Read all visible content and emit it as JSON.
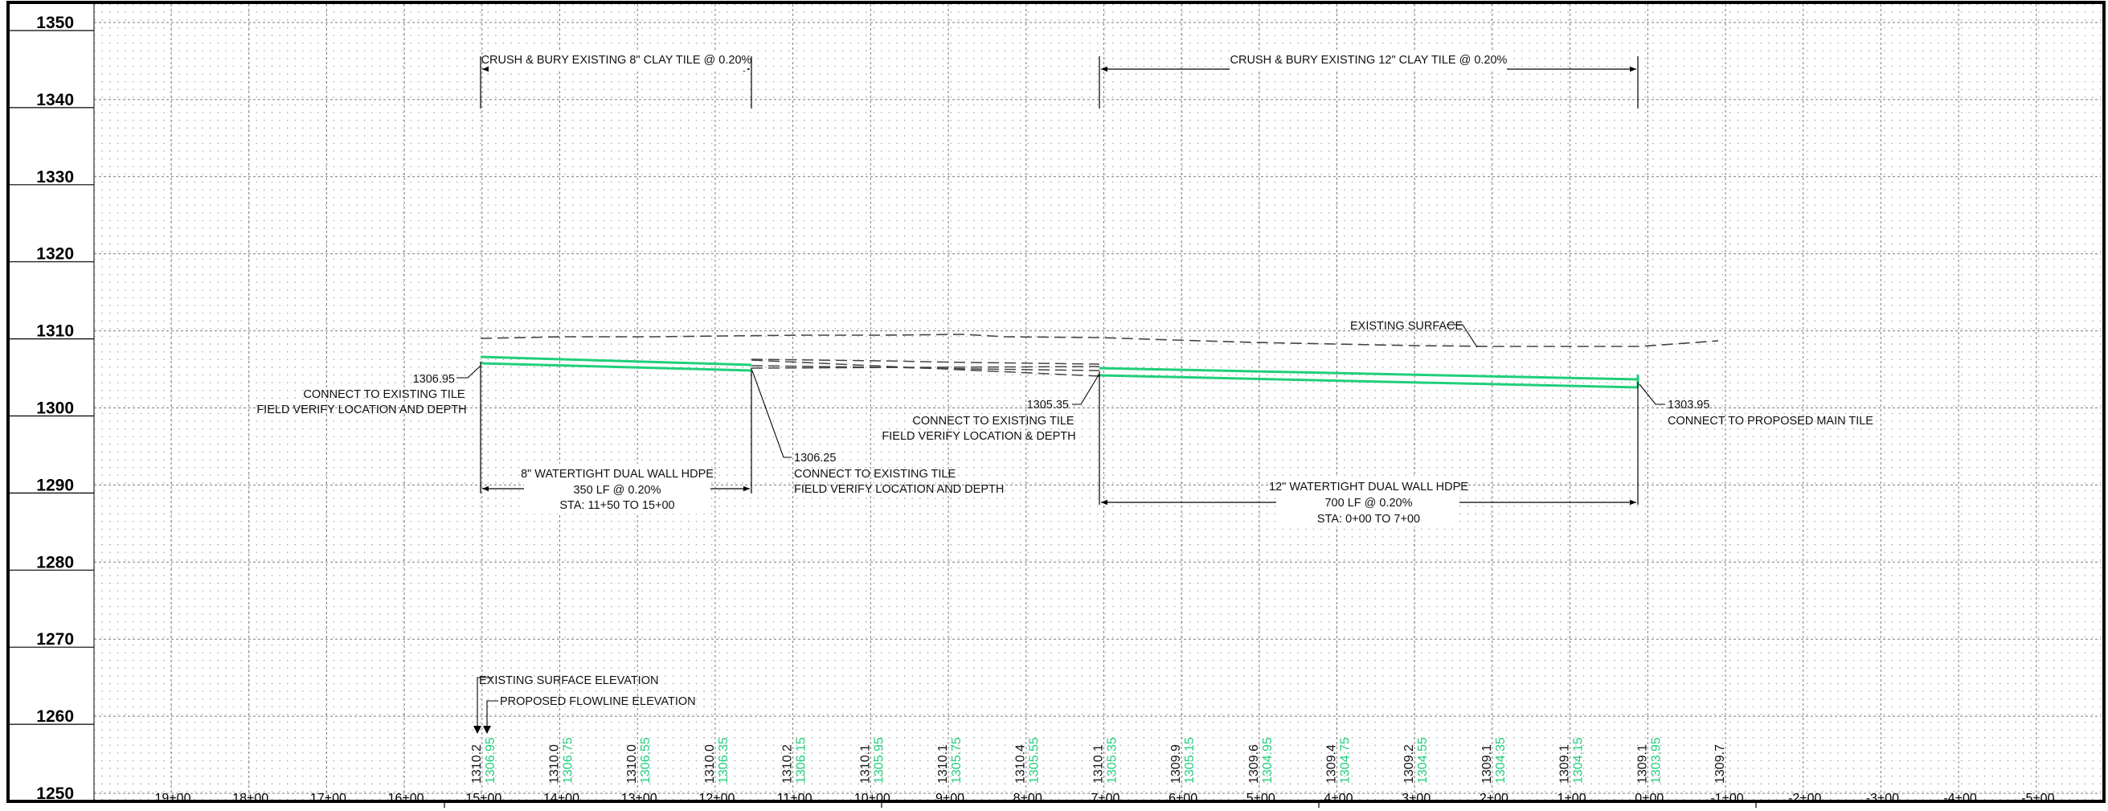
{
  "profile": {
    "elevation_labels": [
      "1350",
      "1340",
      "1330",
      "1320",
      "1310",
      "1300",
      "1290",
      "1280",
      "1270",
      "1260",
      "1250"
    ],
    "station_labels": [
      "19+00",
      "18+00",
      "17+00",
      "16+00",
      "15+00",
      "14+00",
      "13+00",
      "12+00",
      "11+00",
      "10+00",
      "9+00",
      "8+00",
      "7+00",
      "6+00",
      "5+00",
      "4+00",
      "3+00",
      "2+00",
      "1+00",
      "0+00",
      "-1+00",
      "-2+00",
      "-3+00",
      "-4+00",
      "-5+00"
    ],
    "existing_surface_elevations": [
      "1310.2",
      "1310.0",
      "1310.0",
      "1310.0",
      "1310.2",
      "1310.1",
      "1310.1",
      "1310.4",
      "1310.1",
      "1309.9",
      "1309.6",
      "1309.4",
      "1309.2",
      "1309.1",
      "1309.1",
      "1309.1",
      "1309.7"
    ],
    "proposed_flowline_elevations": [
      "1306.95",
      "1306.75",
      "1306.55",
      "1306.35",
      "1306.15",
      "1305.95",
      "1305.75",
      "1305.55",
      "1305.35",
      "1305.15",
      "1304.95",
      "1304.75",
      "1304.55",
      "1304.35",
      "1304.15",
      "1303.95"
    ],
    "colors": {
      "proposed": "#1fcf7a",
      "ink": "#000000",
      "grid": "#a8a8a8"
    },
    "annotations": {
      "crush_8in": "CRUSH & BURY EXISTING 8\" CLAY TILE @ 0.20%",
      "crush_12in": "CRUSH & BURY EXISTING 12\" CLAY TILE @ 0.20%",
      "existing_surface": "EXISTING SURFACE",
      "elev_1306_95": "1306.95",
      "connect_existing_1": "CONNECT TO EXISTING TILE",
      "field_verify_depth_1": "FIELD VERIFY LOCATION AND DEPTH",
      "elev_1306_25": "1306.25",
      "connect_existing_2": "CONNECT TO EXISTING TILE",
      "field_verify_depth_2": "FIELD VERIFY LOCATION AND DEPTH",
      "elev_1305_35": "1305.35",
      "connect_existing_3": "CONNECT TO EXISTING TILE",
      "field_verify_amp": "FIELD VERIFY LOCATION & DEPTH",
      "elev_1303_95": "1303.95",
      "connect_main": "CONNECT TO PROPOSED MAIN TILE",
      "pipe8_line1": "8\" WATERTIGHT DUAL WALL HDPE",
      "pipe8_line2": "350 LF @ 0.20%",
      "pipe8_line3": "STA: 11+50 TO 15+00",
      "pipe12_line1": "12\" WATERTIGHT DUAL WALL HDPE",
      "pipe12_line2": "700 LF @ 0.20%",
      "pipe12_line3": "STA: 0+00 TO 7+00",
      "legend_existing": "EXISTING SURFACE ELEVATION",
      "legend_proposed": "PROPOSED FLOWLINE ELEVATION"
    }
  }
}
